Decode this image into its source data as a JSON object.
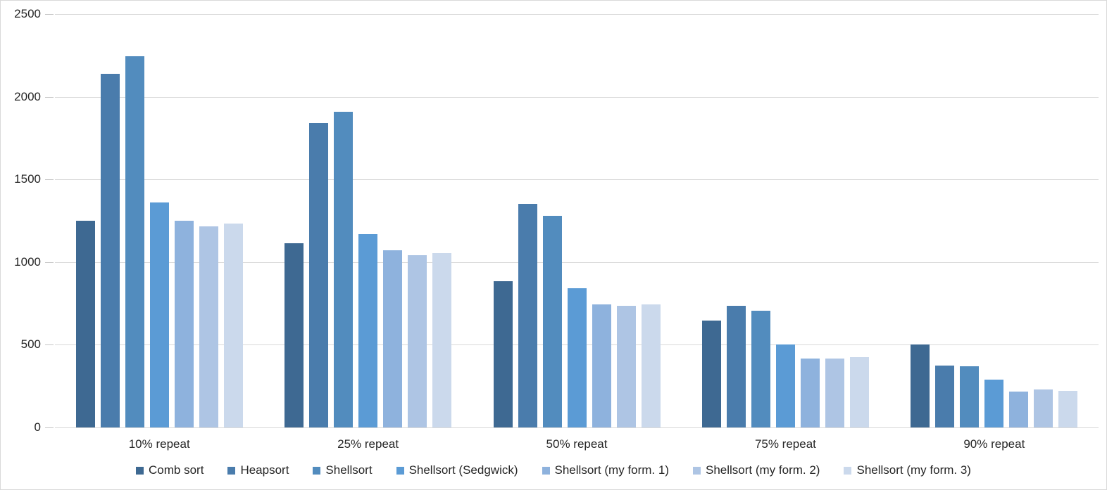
{
  "chart_data": {
    "type": "bar",
    "title": "",
    "xlabel": "",
    "ylabel": "",
    "categories": [
      "10% repeat",
      "25% repeat",
      "50% repeat",
      "75% repeat",
      "90% repeat"
    ],
    "series": [
      {
        "name": "Comb sort",
        "color": "#3E6992",
        "values": [
          1250,
          1115,
          885,
          645,
          500
        ]
      },
      {
        "name": "Heapsort",
        "color": "#4A7CAC",
        "values": [
          2140,
          1840,
          1350,
          735,
          375
        ]
      },
      {
        "name": "Shellsort",
        "color": "#528CBE",
        "values": [
          2245,
          1910,
          1280,
          705,
          370
        ]
      },
      {
        "name": "Shellsort (Sedgwick)",
        "color": "#5B9BD5",
        "values": [
          1360,
          1170,
          840,
          500,
          290
        ]
      },
      {
        "name": "Shellsort (my form. 1)",
        "color": "#8EB2DD",
        "values": [
          1250,
          1070,
          745,
          415,
          215
        ]
      },
      {
        "name": "Shellsort (my form. 2)",
        "color": "#AEC5E4",
        "values": [
          1215,
          1040,
          735,
          415,
          230
        ]
      },
      {
        "name": "Shellsort (my form. 3)",
        "color": "#CBD9EC",
        "values": [
          1235,
          1055,
          745,
          425,
          220
        ]
      }
    ],
    "ylim": [
      0,
      2500
    ],
    "ytick_step": 500,
    "ytick_labels": [
      "0",
      "500",
      "1000",
      "1500",
      "2000",
      "2500"
    ],
    "grid": true,
    "legend_position": "bottom"
  },
  "colors": {
    "gridline": "#D9D9D9",
    "tick": "#C6C6C6",
    "text": "#262626",
    "background": "#FFFFFF",
    "frame_border": "#D9D9D9"
  }
}
